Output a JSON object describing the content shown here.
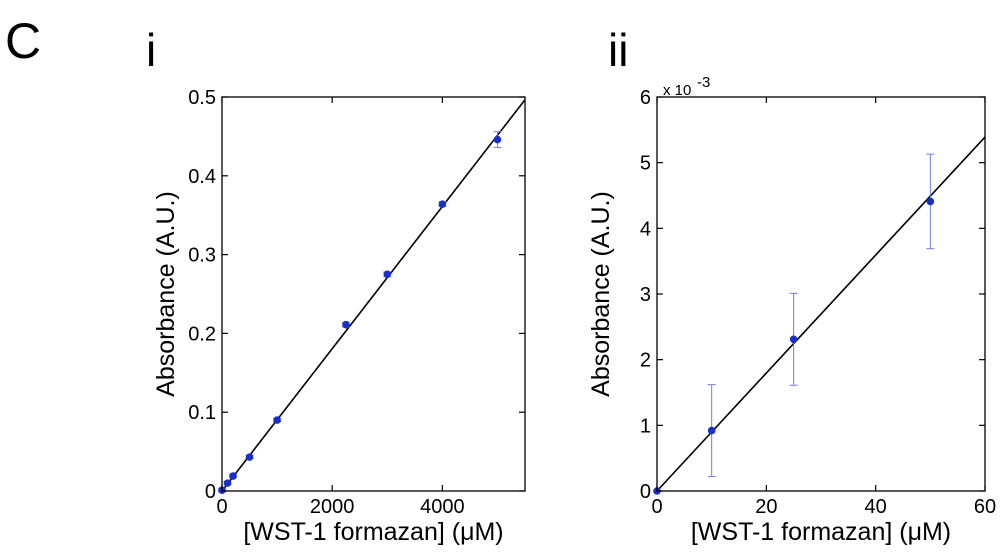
{
  "figure": {
    "label": "C"
  },
  "colors": {
    "point": "#1a2fc9",
    "error_bar": "#6f7fe8",
    "fit_line": "#000000",
    "axes": "#000000"
  },
  "chart_data": [
    {
      "type": "scatter",
      "panel_label": "i",
      "xlabel": "[WST-1 formazan] (μM)",
      "ylabel": "Absorbance (A.U.)",
      "xlim": [
        0,
        5500
      ],
      "ylim": [
        0,
        0.5
      ],
      "x_ticks": [
        0,
        2000,
        4000
      ],
      "x_tick_labels": [
        "0",
        "2000",
        "4000"
      ],
      "y_ticks": [
        0,
        0.1,
        0.2,
        0.3,
        0.4,
        0.5
      ],
      "y_tick_labels": [
        "0",
        "0.1",
        "0.2",
        "0.3",
        "0.4",
        "0.5"
      ],
      "y_exponent_label": "",
      "grid": false,
      "series": [
        {
          "x": [
            0,
            100,
            200,
            500,
            1000,
            2250,
            3000,
            4000,
            5000
          ],
          "y": [
            0.001,
            0.01,
            0.019,
            0.043,
            0.09,
            0.211,
            0.275,
            0.364,
            0.446
          ],
          "error": [
            0.002,
            0.002,
            0.002,
            0.002,
            0.002,
            0.003,
            0.003,
            0.003,
            0.01
          ]
        }
      ],
      "fit_line": {
        "x": [
          0,
          5500
        ],
        "y": [
          0,
          0.4965
        ]
      }
    },
    {
      "type": "scatter",
      "panel_label": "ii",
      "xlabel": "[WST-1 formazan] (μM)",
      "ylabel": "Absorbance (A.U.)",
      "xlim": [
        0,
        60
      ],
      "ylim": [
        0,
        6
      ],
      "x_ticks": [
        0,
        20,
        40,
        60
      ],
      "x_tick_labels": [
        "0",
        "20",
        "40",
        "60"
      ],
      "y_ticks": [
        0,
        1,
        2,
        3,
        4,
        5,
        6
      ],
      "y_tick_labels": [
        "0",
        "1",
        "2",
        "3",
        "4",
        "5",
        "6"
      ],
      "y_exponent_label": "x 10",
      "y_exponent_value": "-3",
      "grid": false,
      "series": [
        {
          "x": [
            0,
            10,
            25,
            50
          ],
          "y": [
            0,
            0.92,
            2.31,
            4.41
          ],
          "error": [
            0,
            0.7,
            0.7,
            0.72
          ]
        }
      ],
      "fit_line": {
        "x": [
          0,
          60
        ],
        "y": [
          0,
          5.39
        ]
      }
    }
  ]
}
